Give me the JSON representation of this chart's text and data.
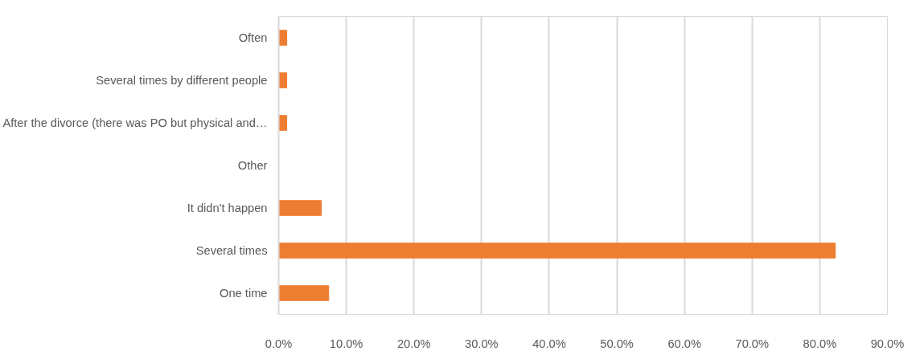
{
  "chart_data": {
    "type": "bar",
    "orientation": "horizontal",
    "categories": [
      "Often",
      "Several times by different people",
      "After the divorce (there was PO but physical and…",
      "Other",
      "It didn't happen",
      "Several times",
      "One time"
    ],
    "values": [
      1.2,
      1.2,
      1.2,
      0,
      6.3,
      82.3,
      7.4
    ],
    "color": "#ed7d31",
    "xlim": [
      0,
      90
    ],
    "xticks": [
      {
        "value": 0,
        "label": "0.0%"
      },
      {
        "value": 10,
        "label": "10.0%"
      },
      {
        "value": 20,
        "label": "20.0%"
      },
      {
        "value": 30,
        "label": "30.0%"
      },
      {
        "value": 40,
        "label": "40.0%"
      },
      {
        "value": 50,
        "label": "50.0%"
      },
      {
        "value": 60,
        "label": "60.0%"
      },
      {
        "value": 70,
        "label": "70.0%"
      },
      {
        "value": 80,
        "label": "80.0%"
      },
      {
        "value": 90,
        "label": "90.0%"
      }
    ],
    "grid": "x"
  }
}
